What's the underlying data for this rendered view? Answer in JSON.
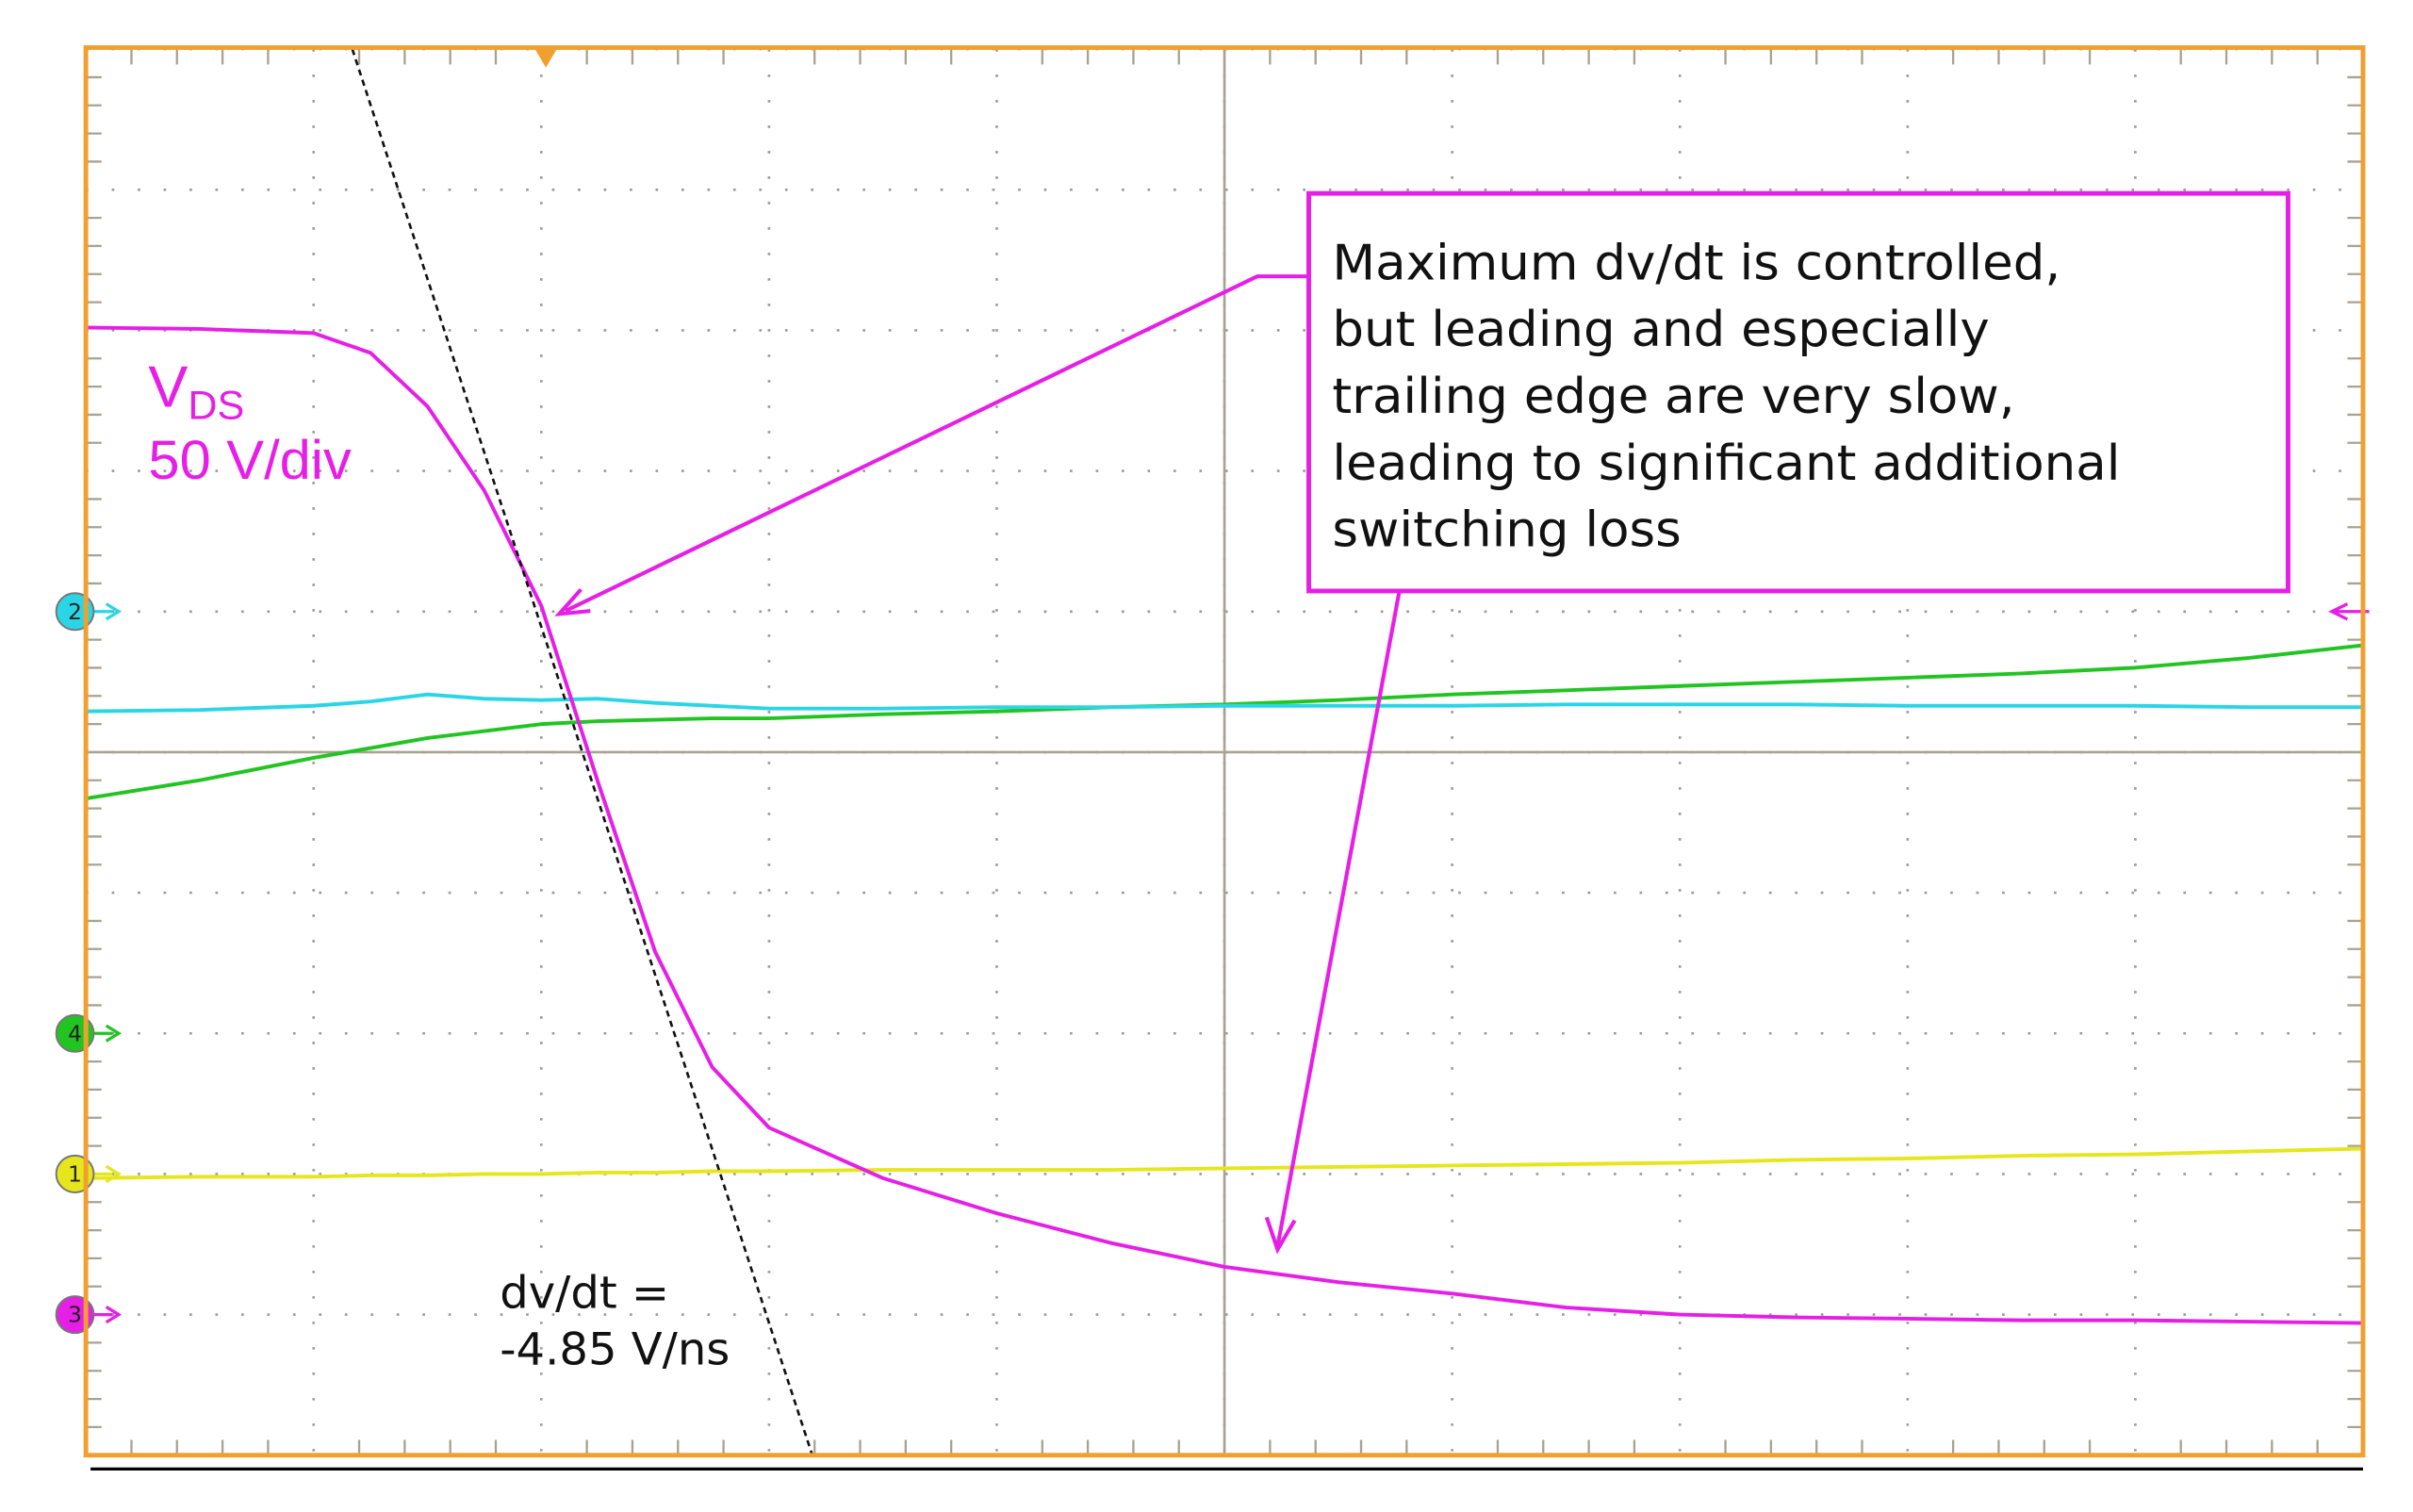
{
  "chart_data": {
    "type": "line",
    "x": [
      0,
      0.5,
      1,
      1.25,
      1.5,
      1.75,
      2,
      2.25,
      2.5,
      2.75,
      3,
      3.5,
      4,
      4.5,
      5,
      5.5,
      6,
      6.5,
      7,
      7.5,
      8,
      8.5,
      9,
      9.5,
      10
    ],
    "xlim": [
      0,
      10
    ],
    "ylim": [
      -5,
      5
    ],
    "xticks": [
      0,
      1,
      2,
      3,
      4,
      5,
      6,
      7,
      8,
      9,
      10
    ],
    "yticks": [
      -5,
      -4,
      -3,
      -2,
      -1,
      0,
      1,
      2,
      3,
      4,
      5
    ],
    "grid": true,
    "series": [
      {
        "name": "3",
        "color": "#e61fe6",
        "offset": -4,
        "values": [
          3.02,
          3.01,
          2.98,
          2.84,
          2.46,
          1.86,
          1.04,
          -0.22,
          -1.42,
          -2.24,
          -2.67,
          -3.03,
          -3.28,
          -3.49,
          -3.66,
          -3.77,
          -3.85,
          -3.95,
          -4.0,
          -4.02,
          -4.03,
          -4.04,
          -4.04,
          -4.05,
          -4.06
        ]
      },
      {
        "name": "2",
        "color": "#2ad6e6",
        "offset": 1,
        "values": [
          0.29,
          0.3,
          0.33,
          0.36,
          0.41,
          0.38,
          0.37,
          0.38,
          0.35,
          0.33,
          0.31,
          0.31,
          0.32,
          0.32,
          0.33,
          0.33,
          0.33,
          0.34,
          0.34,
          0.34,
          0.33,
          0.33,
          0.33,
          0.32,
          0.32
        ]
      },
      {
        "name": "4",
        "color": "#22c422",
        "offset": -2,
        "values": [
          -0.33,
          -0.2,
          -0.04,
          0.03,
          0.1,
          0.15,
          0.2,
          0.22,
          0.23,
          0.24,
          0.24,
          0.27,
          0.29,
          0.32,
          0.34,
          0.37,
          0.41,
          0.44,
          0.47,
          0.5,
          0.53,
          0.56,
          0.6,
          0.67,
          0.76
        ]
      },
      {
        "name": "1",
        "color": "#e6e61c",
        "offset": -3,
        "values": [
          -3.03,
          -3.02,
          -3.02,
          -3.01,
          -3.01,
          -3.0,
          -3.0,
          -2.99,
          -2.99,
          -2.98,
          -2.98,
          -2.97,
          -2.97,
          -2.97,
          -2.96,
          -2.95,
          -2.94,
          -2.93,
          -2.92,
          -2.9,
          -2.89,
          -2.87,
          -2.86,
          -2.84,
          -2.82
        ]
      }
    ],
    "trigger": {
      "position": 2.02,
      "level": 1.0
    },
    "tangent": {
      "x": [
        1.17,
        3.19
      ],
      "y": [
        5,
        -5
      ]
    },
    "annotations": {
      "trace_label": {
        "symbol": "V",
        "subscript": "DS",
        "scale": "50 V/div"
      },
      "slope": [
        "dv/dt =",
        "-4.85 V/ns"
      ],
      "note": [
        "Maximum dv/dt is controlled,",
        "but leading and especially",
        "trailing edge are very slow,",
        "leading to significant additional",
        "switching loss"
      ]
    }
  }
}
